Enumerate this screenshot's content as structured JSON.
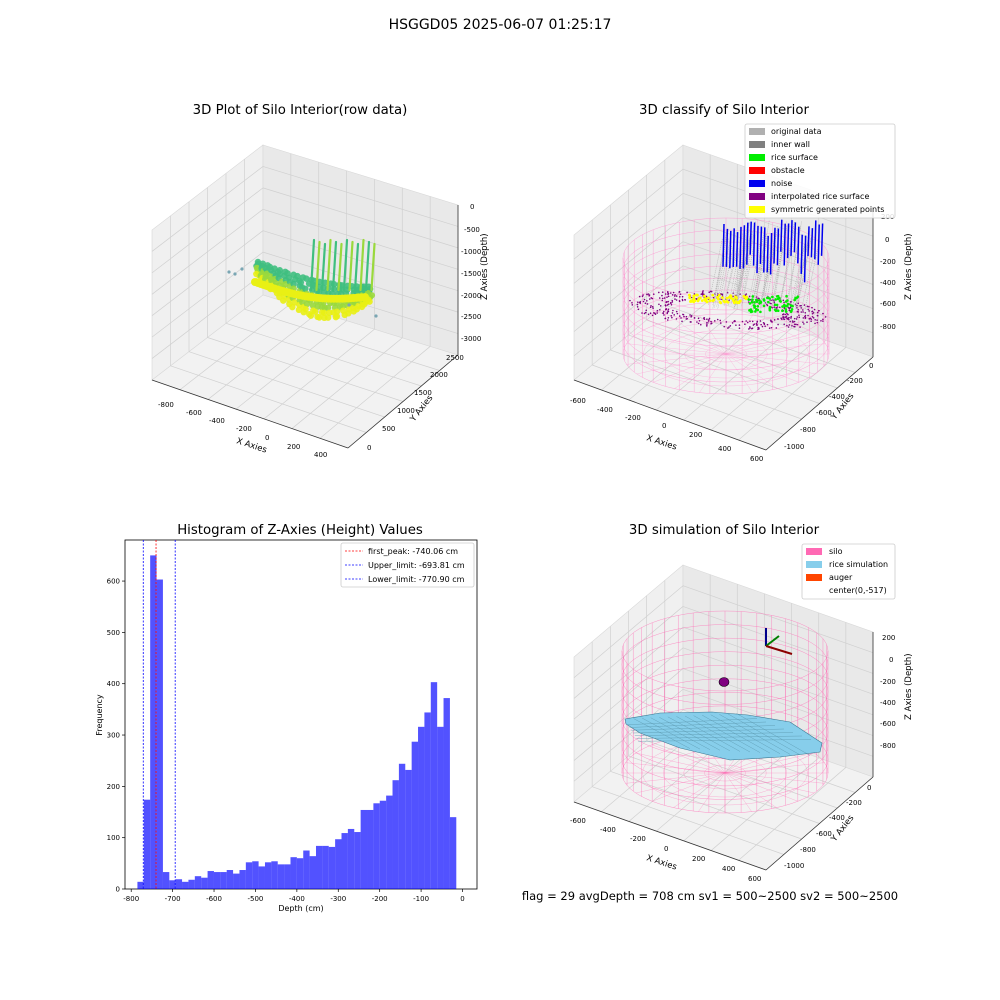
{
  "figure": {
    "suptitle": "HSGGD05 2025-06-07 01:25:17",
    "status_line": "flag = 29  avgDepth = 708 cm  sv1 = 500~2500  sv2 = 500~2500"
  },
  "panels": [
    {
      "title": "3D Plot of Silo Interior(row data)",
      "type": "scatter3d",
      "xlabel": "X Axies",
      "ylabel": "Y Axies",
      "zlabel": "Z Axies (Depth)",
      "x_ticks": [
        "-800",
        "-600",
        "-400",
        "-200",
        "0",
        "200",
        "400"
      ],
      "y_ticks": [
        "0",
        "500",
        "1000",
        "1500",
        "2000",
        "2500"
      ],
      "z_ticks": [
        "0",
        "-500",
        "-1000",
        "-1500",
        "-2000",
        "-2500",
        "-3000"
      ],
      "colormap": [
        "#3fbf7f",
        "#9ad93c",
        "#e9f014"
      ]
    },
    {
      "title": "3D classify of Silo Interior",
      "type": "scatter3d",
      "xlabel": "X Axies",
      "ylabel": "Y Axies",
      "zlabel": "Z Axies (Depth)",
      "x_ticks": [
        "-600",
        "-400",
        "-200",
        "0",
        "200",
        "400",
        "600"
      ],
      "y_ticks": [
        "0",
        "-200",
        "-400",
        "-600",
        "-800",
        "-1000"
      ],
      "z_ticks": [
        "200",
        "0",
        "-200",
        "-400",
        "-600",
        "-800"
      ],
      "legend_position": "top-right",
      "legend": [
        {
          "label": "original data",
          "color": "#b0b0b0"
        },
        {
          "label": "inner wall",
          "color": "#808080"
        },
        {
          "label": "rice surface",
          "color": "#00ee00"
        },
        {
          "label": "obstacle",
          "color": "#ff0000"
        },
        {
          "label": "noise",
          "color": "#0000ee"
        },
        {
          "label": "interpolated rice surface",
          "color": "#800080"
        },
        {
          "label": "symmetric generated points",
          "color": "#ffff00"
        }
      ],
      "silo_color": "#ff88cc"
    },
    {
      "title": "Histogram of Z-Axies (Height) Values",
      "type": "histogram",
      "xlabel": "Depth (cm)",
      "ylabel": "Frequency",
      "legend_position": "top-right",
      "legend": [
        {
          "label": "first_peak: -740.06 cm",
          "color": "#ff0000"
        },
        {
          "label": "Upper_limit: -693.81 cm",
          "color": "#0000ff"
        },
        {
          "label": "Lower_limit: -770.90 cm",
          "color": "#0000ff"
        }
      ]
    },
    {
      "title": "3D simulation of Silo Interior",
      "type": "surface3d",
      "xlabel": "X Axies",
      "ylabel": "Y Axies",
      "zlabel": "Z Axies (Depth)",
      "x_ticks": [
        "-600",
        "-400",
        "-200",
        "0",
        "200",
        "400",
        "600"
      ],
      "y_ticks": [
        "0",
        "-200",
        "-400",
        "-600",
        "-800",
        "-1000"
      ],
      "z_ticks": [
        "200",
        "0",
        "-200",
        "-400",
        "-600",
        "-800"
      ],
      "legend_position": "top-right",
      "legend": [
        {
          "label": "silo",
          "color": "#ff69b4"
        },
        {
          "label": "rice simulation",
          "color": "#87ceeb"
        },
        {
          "label": "auger",
          "color": "#ff4500"
        },
        {
          "label": "center(0,-517)",
          "color": "#ffffff"
        }
      ]
    }
  ],
  "chart_data": [
    {
      "type": "scatter",
      "title": "3D Plot of Silo Interior(row data)",
      "xlabel": "X Axies",
      "ylabel": "Y Axies",
      "zlabel": "Z Axies (Depth)",
      "xlim": [
        -900,
        450
      ],
      "ylim": [
        0,
        2700
      ],
      "zlim": [
        -3000,
        0
      ],
      "series": []
    },
    {
      "type": "scatter",
      "title": "3D classify of Silo Interior",
      "xlabel": "X Axies",
      "ylabel": "Y Axies",
      "zlabel": "Z Axies (Depth)",
      "xlim": [
        -650,
        650
      ],
      "ylim": [
        -1100,
        100
      ],
      "zlim": [
        -900,
        250
      ],
      "series": [
        {
          "name": "original data"
        },
        {
          "name": "inner wall"
        },
        {
          "name": "rice surface"
        },
        {
          "name": "obstacle"
        },
        {
          "name": "noise"
        },
        {
          "name": "interpolated rice surface"
        },
        {
          "name": "symmetric generated points"
        }
      ]
    },
    {
      "type": "bar",
      "title": "Histogram of Z-Axies (Height) Values",
      "xlabel": "Depth (cm)",
      "ylabel": "Frequency",
      "xlim": [
        -815,
        35
      ],
      "ylim": [
        0,
        680
      ],
      "x_ticks": [
        -800,
        -700,
        -600,
        -500,
        -400,
        -300,
        -200,
        -100,
        0
      ],
      "y_ticks": [
        0,
        100,
        200,
        300,
        400,
        500,
        600
      ],
      "bin_start": -785,
      "bin_width": 15.4,
      "values": [
        14,
        174,
        650,
        603,
        33,
        17,
        19,
        14,
        18,
        25,
        22,
        35,
        33,
        33,
        37,
        30,
        37,
        52,
        54,
        44,
        52,
        54,
        48,
        48,
        62,
        60,
        75,
        64,
        84,
        84,
        82,
        97,
        109,
        117,
        111,
        154,
        154,
        167,
        172,
        182,
        212,
        244,
        232,
        287,
        316,
        344,
        403,
        316,
        372,
        140
      ],
      "vlines": [
        {
          "label": "first_peak: -740.06 cm",
          "x": -740.06,
          "color": "#ff0000"
        },
        {
          "label": "Upper_limit: -693.81 cm",
          "x": -693.81,
          "color": "#0000ff"
        },
        {
          "label": "Lower_limit: -770.90 cm",
          "x": -770.9,
          "color": "#0000ff"
        }
      ],
      "grid": false,
      "legend": "top-right"
    },
    {
      "type": "area",
      "title": "3D simulation of Silo Interior",
      "xlabel": "X Axies",
      "ylabel": "Y Axies",
      "zlabel": "Z Axies (Depth)",
      "xlim": [
        -650,
        650
      ],
      "ylim": [
        -1100,
        100
      ],
      "zlim": [
        -900,
        300
      ],
      "series": [
        {
          "name": "silo"
        },
        {
          "name": "rice simulation"
        },
        {
          "name": "auger"
        },
        {
          "name": "center(0,-517)"
        }
      ]
    }
  ]
}
